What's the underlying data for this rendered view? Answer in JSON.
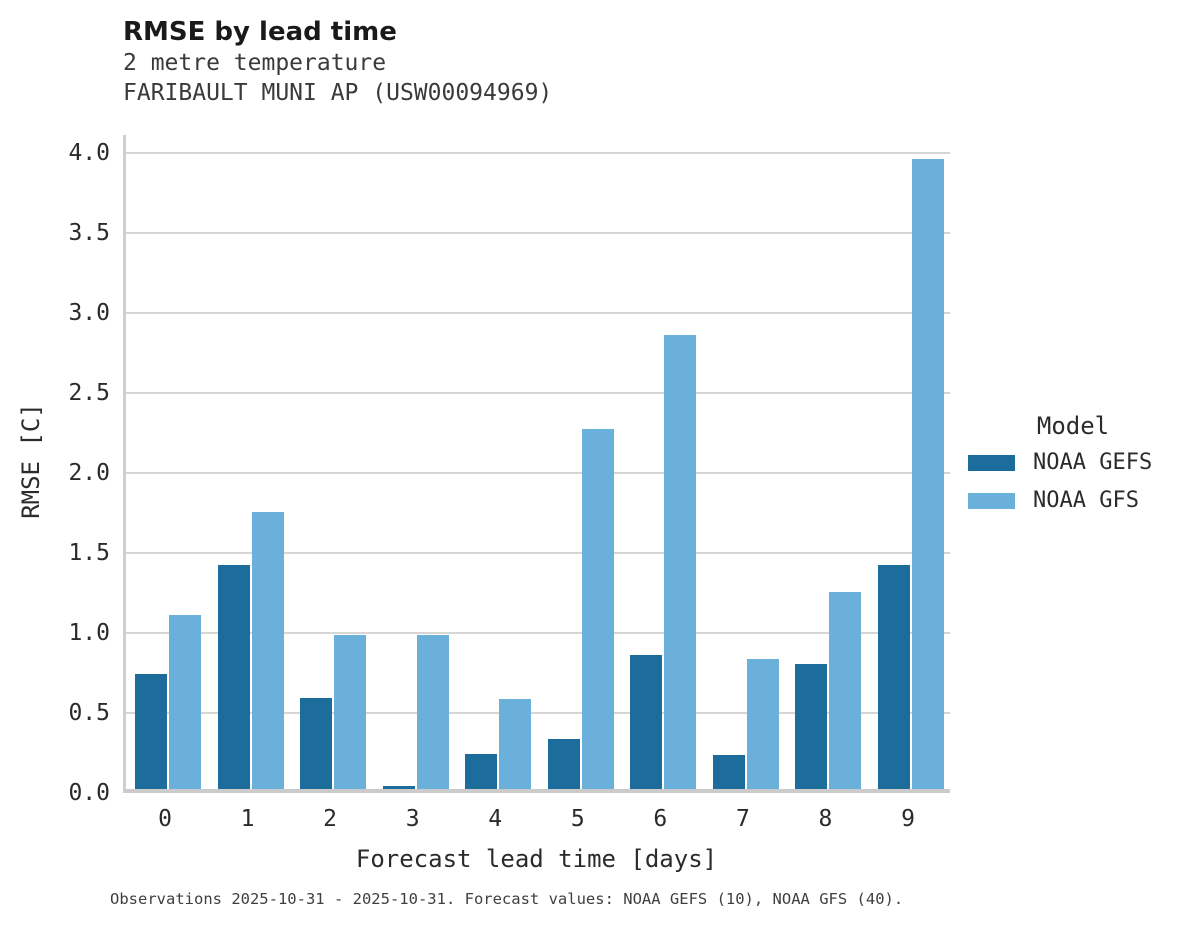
{
  "header": {
    "title": "RMSE by lead time",
    "subtitle1": "2 metre temperature",
    "subtitle2": "FARIBAULT MUNI AP (USW00094969)"
  },
  "legend": {
    "title": "Model",
    "entries": [
      {
        "label": "NOAA GEFS",
        "color": "#1c6d9c"
      },
      {
        "label": "NOAA GFS",
        "color": "#6bb0da"
      }
    ]
  },
  "footer": {
    "note": "Observations 2025-10-31 - 2025-10-31. Forecast values: NOAA GEFS (10), NOAA GFS (40)."
  },
  "chart_data": {
    "type": "bar",
    "title": "RMSE by lead time",
    "subtitle": [
      "2 metre temperature",
      "FARIBAULT MUNI AP (USW00094969)"
    ],
    "categories": [
      "0",
      "1",
      "2",
      "3",
      "4",
      "5",
      "6",
      "7",
      "8",
      "9"
    ],
    "series": [
      {
        "name": "NOAA GEFS",
        "color": "#1c6d9c",
        "values": [
          0.72,
          1.4,
          0.57,
          0.02,
          0.22,
          0.31,
          0.84,
          0.21,
          0.78,
          1.4
        ]
      },
      {
        "name": "NOAA GFS",
        "color": "#6bb0da",
        "values": [
          1.09,
          1.73,
          0.96,
          0.96,
          0.56,
          2.25,
          2.84,
          0.81,
          1.23,
          3.94
        ]
      }
    ],
    "xlabel": "Forecast lead time [days]",
    "ylabel": "RMSE [C]",
    "ylim": [
      0,
      4.11
    ],
    "yticks": [
      0.0,
      0.5,
      1.0,
      1.5,
      2.0,
      2.5,
      3.0,
      3.5,
      4.0
    ],
    "grid": true,
    "legend_title": "Model",
    "legend_position": "center-right"
  }
}
